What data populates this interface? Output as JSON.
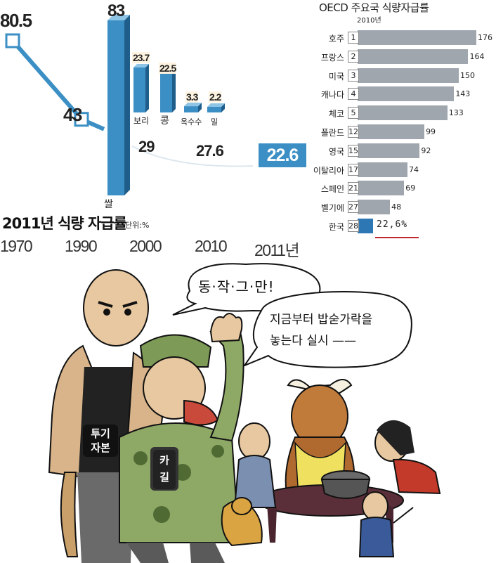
{
  "chart_data": [
    {
      "type": "line",
      "title": "2011년 식량 자급률",
      "unit": "단위:%",
      "x": [
        "1970",
        "1990",
        "2000",
        "2010",
        "2011년"
      ],
      "series": [
        {
          "values": [
            80.5,
            43,
            29,
            27.6,
            22.6
          ]
        }
      ],
      "highlight_index": 4,
      "inset": {
        "type": "bar",
        "categories": [
          "쌀",
          "보리",
          "콩",
          "옥수수",
          "밀"
        ],
        "values": [
          83,
          23.7,
          22.5,
          3.3,
          2.2
        ]
      },
      "labels": {
        "v1970": "80.5",
        "v1990": "43",
        "v2000": "29",
        "v2010": "27.6",
        "v2011": "22.6",
        "rice": "83",
        "barley": "23.7",
        "bean": "22.5",
        "corn": "3.3",
        "wheat": "2.2"
      }
    },
    {
      "type": "bar",
      "title": "OECD 주요국 식량자급률",
      "subtitle": "2010년",
      "orientation": "horizontal",
      "categories": [
        "호주",
        "프랑스",
        "미국",
        "캐나다",
        "체코",
        "폴란드",
        "영국",
        "이탈리아",
        "스페인",
        "벨기에",
        "한국"
      ],
      "ranks": [
        "1",
        "2",
        "3",
        "4",
        "5",
        "12",
        "15",
        "17",
        "21",
        "27",
        "28"
      ],
      "values": [
        176,
        164,
        150,
        143,
        133,
        99,
        92,
        74,
        69,
        48,
        22.6
      ],
      "value_labels": [
        "176",
        "164",
        "150",
        "143",
        "133",
        "99",
        "92",
        "74",
        "69",
        "48",
        "22,6%"
      ],
      "xlim": [
        0,
        176
      ],
      "colors": {
        "bar": "#9fa6ae",
        "highlight": "#2d77b4",
        "underline": "#c0262d"
      }
    }
  ],
  "cartoon": {
    "speech_top": "동·작·그·만!",
    "speech_right_line1": "지금부터 밥숟가락을",
    "speech_right_line2": "놓는다 실시 ——",
    "badge_speculative_capital_1": "투기",
    "badge_speculative_capital_2": "자본",
    "badge_cargill_1": "카",
    "badge_cargill_2": "길"
  },
  "colors": {
    "line": "#3b8fc4",
    "accent": "#3b8fc4"
  }
}
